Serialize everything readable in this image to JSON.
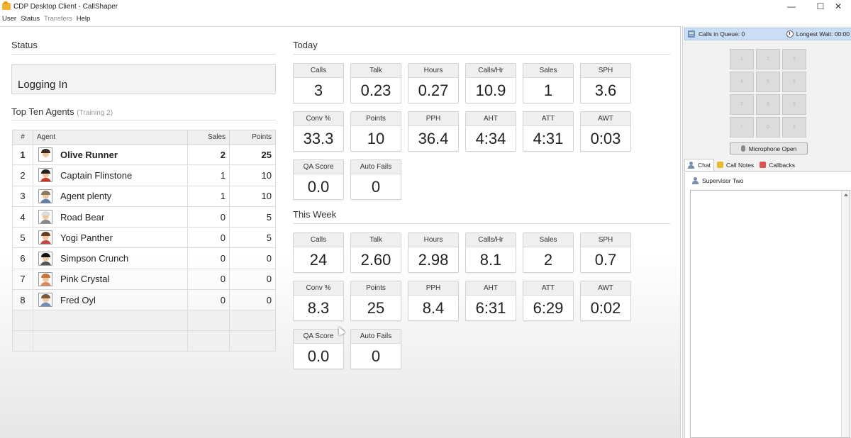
{
  "window": {
    "title": "CDP Desktop Client - CallShaper",
    "controls": {
      "minimize": "—",
      "maximize": "☐",
      "close": "✕"
    }
  },
  "menu": [
    "User",
    "Status",
    "Transfers",
    "Help"
  ],
  "status": {
    "heading": "Status",
    "value": "Logging In"
  },
  "top_agents": {
    "heading": "Top Ten Agents",
    "subheading": "(Training 2)",
    "columns": [
      "#",
      "Agent",
      "Sales",
      "Points"
    ],
    "rows": [
      {
        "rank": "1",
        "name": "Olive Runner",
        "sales": "2",
        "points": "25",
        "avatar_colors": [
          "#3a2a20",
          "#ffffff"
        ]
      },
      {
        "rank": "2",
        "name": "Captain Flinstone",
        "sales": "1",
        "points": "10",
        "avatar_colors": [
          "#222222",
          "#c0392b"
        ]
      },
      {
        "rank": "3",
        "name": "Agent plenty",
        "sales": "1",
        "points": "10",
        "avatar_colors": [
          "#8a7a60",
          "#5b7fb0"
        ]
      },
      {
        "rank": "4",
        "name": "Road Bear",
        "sales": "0",
        "points": "5",
        "avatar_colors": [
          "#dddddd",
          "#888888"
        ]
      },
      {
        "rank": "5",
        "name": "Yogi Panther",
        "sales": "0",
        "points": "5",
        "avatar_colors": [
          "#6a3b1d",
          "#c84848"
        ]
      },
      {
        "rank": "6",
        "name": "Simpson Crunch",
        "sales": "0",
        "points": "0",
        "avatar_colors": [
          "#111111",
          "#555555"
        ]
      },
      {
        "rank": "7",
        "name": "Pink Crystal",
        "sales": "0",
        "points": "0",
        "avatar_colors": [
          "#c7773a",
          "#d88a5a"
        ]
      },
      {
        "rank": "8",
        "name": "Fred Oyl",
        "sales": "0",
        "points": "0",
        "avatar_colors": [
          "#7a5a3a",
          "#6f8fb5"
        ]
      }
    ]
  },
  "today": {
    "heading": "Today",
    "stats": [
      {
        "label": "Calls",
        "value": "3"
      },
      {
        "label": "Talk",
        "value": "0.23"
      },
      {
        "label": "Hours",
        "value": "0.27"
      },
      {
        "label": "Calls/Hr",
        "value": "10.9"
      },
      {
        "label": "Sales",
        "value": "1"
      },
      {
        "label": "SPH",
        "value": "3.6"
      },
      {
        "label": "Conv %",
        "value": "33.3"
      },
      {
        "label": "Points",
        "value": "10"
      },
      {
        "label": "PPH",
        "value": "36.4"
      },
      {
        "label": "AHT",
        "value": "4:34"
      },
      {
        "label": "ATT",
        "value": "4:31"
      },
      {
        "label": "AWT",
        "value": "0:03"
      },
      {
        "label": "QA Score",
        "value": "0.0"
      },
      {
        "label": "Auto Fails",
        "value": "0"
      }
    ]
  },
  "week": {
    "heading": "This Week",
    "stats": [
      {
        "label": "Calls",
        "value": "24"
      },
      {
        "label": "Talk",
        "value": "2.60"
      },
      {
        "label": "Hours",
        "value": "2.98"
      },
      {
        "label": "Calls/Hr",
        "value": "8.1"
      },
      {
        "label": "Sales",
        "value": "2"
      },
      {
        "label": "SPH",
        "value": "0.7"
      },
      {
        "label": "Conv %",
        "value": "8.3"
      },
      {
        "label": "Points",
        "value": "25"
      },
      {
        "label": "PPH",
        "value": "8.4"
      },
      {
        "label": "AHT",
        "value": "6:31"
      },
      {
        "label": "ATT",
        "value": "6:29"
      },
      {
        "label": "AWT",
        "value": "0:02"
      },
      {
        "label": "QA Score",
        "value": "0.0"
      },
      {
        "label": "Auto Fails",
        "value": "0"
      }
    ]
  },
  "sidebar": {
    "queue_label": "Calls in Queue: 0",
    "wait_label": "Longest Wait: 00:00",
    "keypad": [
      "1",
      "2",
      "3",
      "4",
      "5",
      "6",
      "7",
      "8",
      "9",
      "*",
      "0",
      "#"
    ],
    "microphone_button": "Microphone Open",
    "tabs": [
      "Chat",
      "Call Notes",
      "Callbacks"
    ],
    "supervisor": "Supervisor Two"
  },
  "colors": {
    "queue_bar": "#c9def4",
    "card_header": "#efefef",
    "panel_bg": "#f2f2f2"
  }
}
